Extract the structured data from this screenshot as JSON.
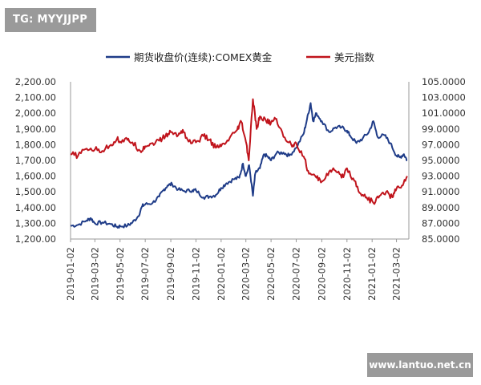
{
  "watermarks": {
    "top_left": "TG: MYYJJPP",
    "bottom_right": "www.lantuo.net.cn"
  },
  "chart_data": {
    "type": "line",
    "title": "",
    "legend_position": "top",
    "grid": false,
    "x_tick_labels": [
      "2019-01-02",
      "2019-03-02",
      "2019-05-02",
      "2019-07-02",
      "2019-09-02",
      "2019-11-02",
      "2020-01-02",
      "2020-03-02",
      "2020-05-02",
      "2020-07-02",
      "2020-09-02",
      "2020-11-02",
      "2021-01-02",
      "2021-03-02"
    ],
    "xlim": [
      "2019-01-02",
      "2021-04-01"
    ],
    "y_left": {
      "ylim": [
        1200,
        2200
      ],
      "tick_labels": [
        "2,200.00",
        "2,100.00",
        "2,000.00",
        "1,900.00",
        "1,800.00",
        "1,700.00",
        "1,600.00",
        "1,500.00",
        "1,400.00",
        "1,300.00",
        "1,200.00"
      ],
      "tick_values": [
        2200,
        2100,
        2000,
        1900,
        1800,
        1700,
        1600,
        1500,
        1400,
        1300,
        1200
      ]
    },
    "y_right": {
      "ylim": [
        85,
        105
      ],
      "tick_labels": [
        "105.0000",
        "103.0000",
        "101.0000",
        "99.0000",
        "97.0000",
        "95.0000",
        "93.0000",
        "91.0000",
        "89.0000",
        "87.0000",
        "85.0000"
      ],
      "tick_values": [
        105,
        103,
        101,
        99,
        97,
        95,
        93,
        91,
        89,
        87,
        85
      ]
    },
    "series": [
      {
        "name": "期货收盘价(连续):COMEX黄金",
        "axis": "left",
        "color": "#1f3c88",
        "points": [
          [
            "2019-01-02",
            1284
          ],
          [
            "2019-01-20",
            1290
          ],
          [
            "2019-02-10",
            1318
          ],
          [
            "2019-02-20",
            1333
          ],
          [
            "2019-03-02",
            1300
          ],
          [
            "2019-03-20",
            1305
          ],
          [
            "2019-04-10",
            1295
          ],
          [
            "2019-04-25",
            1277
          ],
          [
            "2019-05-02",
            1282
          ],
          [
            "2019-05-20",
            1285
          ],
          [
            "2019-06-01",
            1305
          ],
          [
            "2019-06-15",
            1345
          ],
          [
            "2019-06-25",
            1410
          ],
          [
            "2019-07-02",
            1420
          ],
          [
            "2019-07-20",
            1430
          ],
          [
            "2019-08-05",
            1470
          ],
          [
            "2019-08-15",
            1510
          ],
          [
            "2019-08-25",
            1540
          ],
          [
            "2019-09-05",
            1550
          ],
          [
            "2019-09-20",
            1515
          ],
          [
            "2019-10-05",
            1505
          ],
          [
            "2019-10-25",
            1510
          ],
          [
            "2019-11-02",
            1510
          ],
          [
            "2019-11-20",
            1465
          ],
          [
            "2019-12-05",
            1470
          ],
          [
            "2019-12-20",
            1480
          ],
          [
            "2020-01-02",
            1525
          ],
          [
            "2020-01-15",
            1555
          ],
          [
            "2020-02-01",
            1580
          ],
          [
            "2020-02-15",
            1590
          ],
          [
            "2020-02-24",
            1680
          ],
          [
            "2020-03-02",
            1600
          ],
          [
            "2020-03-10",
            1670
          ],
          [
            "2020-03-19",
            1475
          ],
          [
            "2020-03-25",
            1620
          ],
          [
            "2020-04-05",
            1650
          ],
          [
            "2020-04-15",
            1740
          ],
          [
            "2020-04-25",
            1720
          ],
          [
            "2020-05-02",
            1700
          ],
          [
            "2020-05-15",
            1745
          ],
          [
            "2020-06-01",
            1750
          ],
          [
            "2020-06-15",
            1730
          ],
          [
            "2020-07-02",
            1780
          ],
          [
            "2020-07-20",
            1870
          ],
          [
            "2020-07-28",
            1960
          ],
          [
            "2020-08-06",
            2065
          ],
          [
            "2020-08-12",
            1950
          ],
          [
            "2020-08-20",
            2000
          ],
          [
            "2020-09-02",
            1950
          ],
          [
            "2020-09-20",
            1880
          ],
          [
            "2020-10-05",
            1910
          ],
          [
            "2020-10-20",
            1910
          ],
          [
            "2020-11-02",
            1890
          ],
          [
            "2020-11-09",
            1860
          ],
          [
            "2020-11-25",
            1810
          ],
          [
            "2020-12-10",
            1840
          ],
          [
            "2020-12-25",
            1880
          ],
          [
            "2021-01-05",
            1950
          ],
          [
            "2021-01-15",
            1850
          ],
          [
            "2021-02-01",
            1860
          ],
          [
            "2021-02-15",
            1810
          ],
          [
            "2021-03-02",
            1730
          ],
          [
            "2021-03-10",
            1720
          ],
          [
            "2021-03-20",
            1740
          ],
          [
            "2021-03-28",
            1700
          ]
        ]
      },
      {
        "name": "美元指数",
        "axis": "right",
        "color": "#c0141c",
        "points": [
          [
            "2019-01-02",
            95.8
          ],
          [
            "2019-01-20",
            95.6
          ],
          [
            "2019-02-10",
            96.5
          ],
          [
            "2019-03-02",
            96.4
          ],
          [
            "2019-03-20",
            96.2
          ],
          [
            "2019-04-10",
            97.0
          ],
          [
            "2019-04-25",
            97.8
          ],
          [
            "2019-05-02",
            97.4
          ],
          [
            "2019-05-20",
            97.6
          ],
          [
            "2019-06-01",
            97.3
          ],
          [
            "2019-06-20",
            96.2
          ],
          [
            "2019-07-02",
            96.8
          ],
          [
            "2019-07-20",
            97.2
          ],
          [
            "2019-08-05",
            97.5
          ],
          [
            "2019-08-20",
            98.1
          ],
          [
            "2019-09-02",
            98.6
          ],
          [
            "2019-09-20",
            98.2
          ],
          [
            "2019-10-01",
            98.9
          ],
          [
            "2019-10-15",
            97.4
          ],
          [
            "2019-11-02",
            97.3
          ],
          [
            "2019-11-20",
            98.1
          ],
          [
            "2019-12-05",
            97.6
          ],
          [
            "2019-12-20",
            96.6
          ],
          [
            "2020-01-02",
            96.8
          ],
          [
            "2020-01-20",
            97.5
          ],
          [
            "2020-02-10",
            98.9
          ],
          [
            "2020-02-20",
            99.9
          ],
          [
            "2020-03-02",
            97.4
          ],
          [
            "2020-03-09",
            95.0
          ],
          [
            "2020-03-19",
            102.8
          ],
          [
            "2020-03-28",
            99.0
          ],
          [
            "2020-04-05",
            100.6
          ],
          [
            "2020-04-20",
            100.0
          ],
          [
            "2020-05-02",
            99.8
          ],
          [
            "2020-05-15",
            100.3
          ],
          [
            "2020-06-01",
            98.0
          ],
          [
            "2020-06-20",
            97.0
          ],
          [
            "2020-07-02",
            97.2
          ],
          [
            "2020-07-20",
            95.5
          ],
          [
            "2020-08-02",
            93.3
          ],
          [
            "2020-08-20",
            92.8
          ],
          [
            "2020-09-02",
            92.3
          ],
          [
            "2020-09-20",
            93.6
          ],
          [
            "2020-10-05",
            93.7
          ],
          [
            "2020-10-20",
            92.8
          ],
          [
            "2020-11-02",
            94.0
          ],
          [
            "2020-11-20",
            92.4
          ],
          [
            "2020-12-05",
            90.8
          ],
          [
            "2020-12-20",
            90.3
          ],
          [
            "2021-01-05",
            89.6
          ],
          [
            "2021-01-20",
            90.5
          ],
          [
            "2021-02-05",
            91.0
          ],
          [
            "2021-02-20",
            90.3
          ],
          [
            "2021-03-02",
            91.4
          ],
          [
            "2021-03-15",
            91.8
          ],
          [
            "2021-03-28",
            93.0
          ]
        ]
      }
    ]
  }
}
